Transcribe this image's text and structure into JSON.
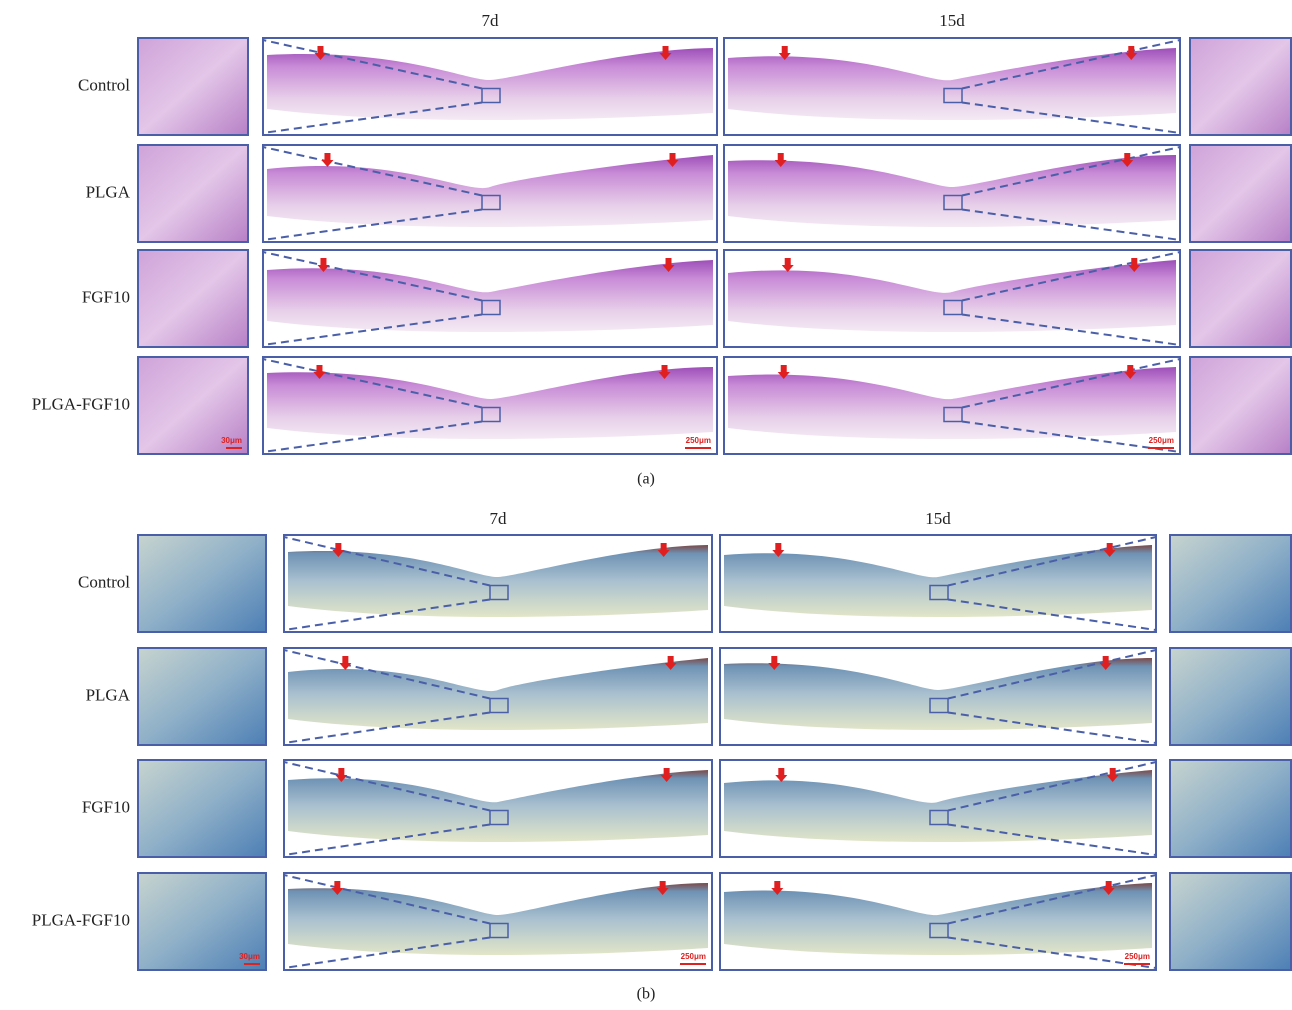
{
  "panels": [
    {
      "columns": [
        "7d",
        "15d"
      ],
      "rows": [
        "Control",
        "PLGA",
        "FGF10",
        "PLGA-FGF10"
      ],
      "scale_bars": [
        "30μm",
        "250μm",
        "250μm"
      ],
      "caption": "(a)"
    },
    {
      "columns": [
        "7d",
        "15d"
      ],
      "rows": [
        "Control",
        "PLGA",
        "FGF10",
        "PLGA-FGF10"
      ],
      "scale_bars": [
        "30μm",
        "250μm",
        "250μm"
      ],
      "caption": "(b)"
    }
  ]
}
